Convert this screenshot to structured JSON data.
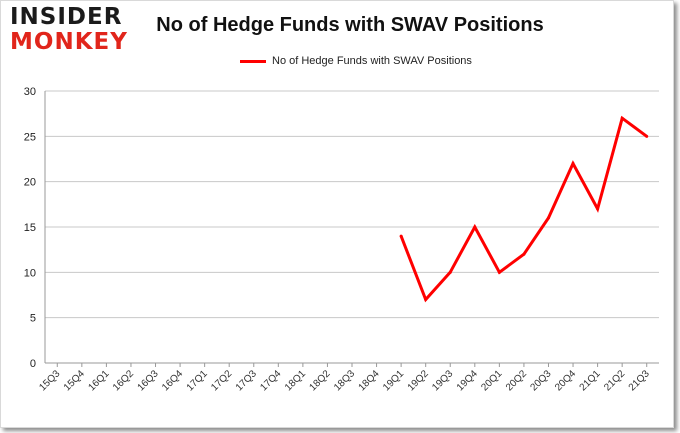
{
  "logo": {
    "line1": "INSIDER",
    "line2": "MONKEY"
  },
  "chart_data": {
    "type": "line",
    "title": "No of Hedge Funds with SWAV Positions",
    "xlabel": "",
    "ylabel": "",
    "ylim": [
      0,
      30
    ],
    "yticks": [
      0,
      5,
      10,
      15,
      20,
      25,
      30
    ],
    "grid": true,
    "legend_position": "top-center",
    "categories": [
      "15Q3",
      "15Q4",
      "16Q1",
      "16Q2",
      "16Q3",
      "16Q4",
      "17Q1",
      "17Q2",
      "17Q3",
      "17Q4",
      "18Q1",
      "18Q2",
      "18Q3",
      "18Q4",
      "19Q1",
      "19Q2",
      "19Q3",
      "19Q4",
      "20Q1",
      "20Q2",
      "20Q3",
      "20Q4",
      "21Q1",
      "21Q2",
      "21Q3"
    ],
    "series": [
      {
        "name": "No of Hedge Funds with SWAV Positions",
        "color": "#ff0000",
        "values": [
          null,
          null,
          null,
          null,
          null,
          null,
          null,
          null,
          null,
          null,
          null,
          null,
          null,
          null,
          14,
          7,
          10,
          15,
          10,
          12,
          16,
          22,
          17,
          27,
          25
        ]
      }
    ]
  }
}
